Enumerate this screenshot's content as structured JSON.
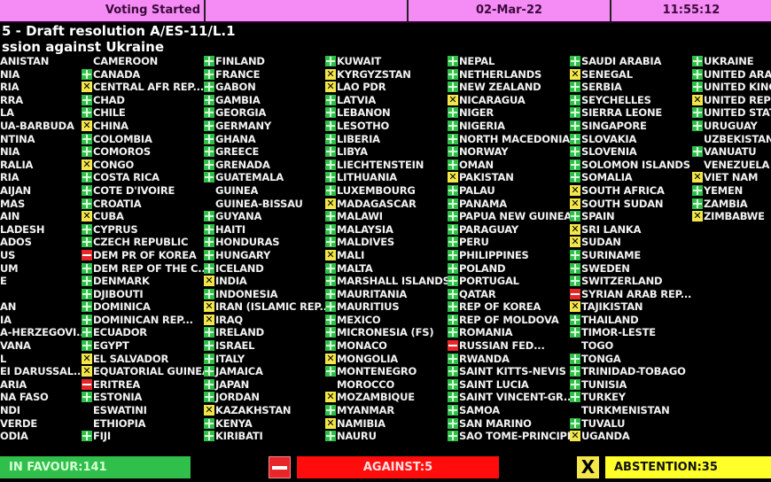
{
  "header": {
    "status": "Voting Started",
    "blank": "",
    "date": "02-Mar-22",
    "time": "11:55:12"
  },
  "title": {
    "line1": "5 - Draft resolution A/ES-11/L.1",
    "line2": "ssion against Ukraine"
  },
  "colors": {
    "favour": "#2fbf4a",
    "against": "#e8262a",
    "abstention": "#f2e64a",
    "header": "#f58cf5"
  },
  "vote_legend": {
    "Y": "plus-icon (in favour)",
    "N": "minus-icon (against)",
    "A": "x-icon (abstention)",
    "": "no vote"
  },
  "columns": [
    [
      {
        "n": "ANISTAN",
        "v": ""
      },
      {
        "n": "NIA",
        "v": ""
      },
      {
        "n": "RIA",
        "v": ""
      },
      {
        "n": "RRA",
        "v": ""
      },
      {
        "n": "LA",
        "v": ""
      },
      {
        "n": "UA-BARBUDA",
        "v": ""
      },
      {
        "n": "NTINA",
        "v": ""
      },
      {
        "n": "NIA",
        "v": ""
      },
      {
        "n": "RALIA",
        "v": ""
      },
      {
        "n": "RIA",
        "v": ""
      },
      {
        "n": "AIJAN",
        "v": ""
      },
      {
        "n": "MAS",
        "v": ""
      },
      {
        "n": "AIN",
        "v": ""
      },
      {
        "n": "LADESH",
        "v": ""
      },
      {
        "n": "ADOS",
        "v": ""
      },
      {
        "n": "US",
        "v": ""
      },
      {
        "n": "UM",
        "v": ""
      },
      {
        "n": "E",
        "v": ""
      },
      {
        "n": "",
        "v": ""
      },
      {
        "n": "AN",
        "v": ""
      },
      {
        "n": "IA",
        "v": ""
      },
      {
        "n": "A-HERZEGOVI...",
        "v": ""
      },
      {
        "n": "VANA",
        "v": ""
      },
      {
        "n": "L",
        "v": ""
      },
      {
        "n": "EI DARUSSAL...",
        "v": ""
      },
      {
        "n": "ARIA",
        "v": ""
      },
      {
        "n": "NA FASO",
        "v": ""
      },
      {
        "n": "NDI",
        "v": ""
      },
      {
        "n": "VERDE",
        "v": ""
      },
      {
        "n": "ODIA",
        "v": ""
      }
    ],
    [
      {
        "n": "CAMEROON",
        "v": ""
      },
      {
        "n": "CANADA",
        "v": "Y"
      },
      {
        "n": "CENTRAL AFR REP....",
        "v": "A"
      },
      {
        "n": "CHAD",
        "v": "Y"
      },
      {
        "n": "CHILE",
        "v": "Y"
      },
      {
        "n": "CHINA",
        "v": "A"
      },
      {
        "n": "COLOMBIA",
        "v": "Y"
      },
      {
        "n": "COMOROS",
        "v": "Y"
      },
      {
        "n": "CONGO",
        "v": "A"
      },
      {
        "n": "COSTA RICA",
        "v": "Y"
      },
      {
        "n": "COTE D'IVOIRE",
        "v": "Y"
      },
      {
        "n": "CROATIA",
        "v": "Y"
      },
      {
        "n": "CUBA",
        "v": "A"
      },
      {
        "n": "CYPRUS",
        "v": "Y"
      },
      {
        "n": "CZECH REPUBLIC",
        "v": "Y"
      },
      {
        "n": "DEM PR OF KOREA",
        "v": "N"
      },
      {
        "n": "DEM REP OF THE C...",
        "v": "Y"
      },
      {
        "n": "DENMARK",
        "v": "Y"
      },
      {
        "n": "DJIBOUTI",
        "v": "Y"
      },
      {
        "n": "DOMINICA",
        "v": "Y"
      },
      {
        "n": "DOMINICAN REP...",
        "v": "Y"
      },
      {
        "n": "ECUADOR",
        "v": "Y"
      },
      {
        "n": "EGYPT",
        "v": "Y"
      },
      {
        "n": "EL SALVADOR",
        "v": "A"
      },
      {
        "n": "EQUATORIAL GUINEA",
        "v": "A"
      },
      {
        "n": "ERITREA",
        "v": "N"
      },
      {
        "n": "ESTONIA",
        "v": "Y"
      },
      {
        "n": "ESWATINI",
        "v": ""
      },
      {
        "n": "ETHIOPIA",
        "v": ""
      },
      {
        "n": "FIJI",
        "v": "Y"
      }
    ],
    [
      {
        "n": "FINLAND",
        "v": "Y"
      },
      {
        "n": "FRANCE",
        "v": "Y"
      },
      {
        "n": "GABON",
        "v": "Y"
      },
      {
        "n": "GAMBIA",
        "v": "Y"
      },
      {
        "n": "GEORGIA",
        "v": "Y"
      },
      {
        "n": "GERMANY",
        "v": "Y"
      },
      {
        "n": "GHANA",
        "v": "Y"
      },
      {
        "n": "GREECE",
        "v": "Y"
      },
      {
        "n": "GRENADA",
        "v": "Y"
      },
      {
        "n": "GUATEMALA",
        "v": "Y"
      },
      {
        "n": "GUINEA",
        "v": ""
      },
      {
        "n": "GUINEA-BISSAU",
        "v": ""
      },
      {
        "n": "GUYANA",
        "v": "Y"
      },
      {
        "n": "HAITI",
        "v": "Y"
      },
      {
        "n": "HONDURAS",
        "v": "Y"
      },
      {
        "n": "HUNGARY",
        "v": "Y"
      },
      {
        "n": "ICELAND",
        "v": "Y"
      },
      {
        "n": "INDIA",
        "v": "A"
      },
      {
        "n": "INDONESIA",
        "v": "Y"
      },
      {
        "n": "IRAN (ISLAMIC REP...",
        "v": "A"
      },
      {
        "n": "IRAQ",
        "v": "A"
      },
      {
        "n": "IRELAND",
        "v": "Y"
      },
      {
        "n": "ISRAEL",
        "v": "Y"
      },
      {
        "n": "ITALY",
        "v": "Y"
      },
      {
        "n": "JAMAICA",
        "v": "Y"
      },
      {
        "n": "JAPAN",
        "v": "Y"
      },
      {
        "n": "JORDAN",
        "v": "Y"
      },
      {
        "n": "KAZAKHSTAN",
        "v": "A"
      },
      {
        "n": "KENYA",
        "v": "Y"
      },
      {
        "n": "KIRIBATI",
        "v": "Y"
      }
    ],
    [
      {
        "n": "KUWAIT",
        "v": "Y"
      },
      {
        "n": "KYRGYZSTAN",
        "v": "A"
      },
      {
        "n": "LAO PDR",
        "v": "A"
      },
      {
        "n": "LATVIA",
        "v": "Y"
      },
      {
        "n": "LEBANON",
        "v": "Y"
      },
      {
        "n": "LESOTHO",
        "v": "Y"
      },
      {
        "n": "LIBERIA",
        "v": "Y"
      },
      {
        "n": "LIBYA",
        "v": "Y"
      },
      {
        "n": "LIECHTENSTEIN",
        "v": "Y"
      },
      {
        "n": "LITHUANIA",
        "v": "Y"
      },
      {
        "n": "LUXEMBOURG",
        "v": "Y"
      },
      {
        "n": "MADAGASCAR",
        "v": "A"
      },
      {
        "n": "MALAWI",
        "v": "Y"
      },
      {
        "n": "MALAYSIA",
        "v": "Y"
      },
      {
        "n": "MALDIVES",
        "v": "Y"
      },
      {
        "n": "MALI",
        "v": "A"
      },
      {
        "n": "MALTA",
        "v": "Y"
      },
      {
        "n": "MARSHALL ISLANDS",
        "v": "Y"
      },
      {
        "n": "MAURITANIA",
        "v": "Y"
      },
      {
        "n": "MAURITIUS",
        "v": "Y"
      },
      {
        "n": "MEXICO",
        "v": "Y"
      },
      {
        "n": "MICRONESIA (FS)",
        "v": "Y"
      },
      {
        "n": "MONACO",
        "v": "Y"
      },
      {
        "n": "MONGOLIA",
        "v": "A"
      },
      {
        "n": "MONTENEGRO",
        "v": "Y"
      },
      {
        "n": "MOROCCO",
        "v": ""
      },
      {
        "n": "MOZAMBIQUE",
        "v": "A"
      },
      {
        "n": "MYANMAR",
        "v": "Y"
      },
      {
        "n": "NAMIBIA",
        "v": "A"
      },
      {
        "n": "NAURU",
        "v": "Y"
      }
    ],
    [
      {
        "n": "NEPAL",
        "v": "Y"
      },
      {
        "n": "NETHERLANDS",
        "v": "Y"
      },
      {
        "n": "NEW ZEALAND",
        "v": "Y"
      },
      {
        "n": "NICARAGUA",
        "v": "A"
      },
      {
        "n": "NIGER",
        "v": "Y"
      },
      {
        "n": "NIGERIA",
        "v": "Y"
      },
      {
        "n": "NORTH MACEDONIA",
        "v": "Y"
      },
      {
        "n": "NORWAY",
        "v": "Y"
      },
      {
        "n": "OMAN",
        "v": "Y"
      },
      {
        "n": "PAKISTAN",
        "v": "A"
      },
      {
        "n": "PALAU",
        "v": "Y"
      },
      {
        "n": "PANAMA",
        "v": "Y"
      },
      {
        "n": "PAPUA NEW GUINEA",
        "v": "Y"
      },
      {
        "n": "PARAGUAY",
        "v": "Y"
      },
      {
        "n": "PERU",
        "v": "Y"
      },
      {
        "n": "PHILIPPINES",
        "v": "Y"
      },
      {
        "n": "POLAND",
        "v": "Y"
      },
      {
        "n": "PORTUGAL",
        "v": "Y"
      },
      {
        "n": "QATAR",
        "v": "Y"
      },
      {
        "n": "REP OF KOREA",
        "v": "Y"
      },
      {
        "n": "REP OF MOLDOVA",
        "v": "Y"
      },
      {
        "n": "ROMANIA",
        "v": "Y"
      },
      {
        "n": "RUSSIAN FED...",
        "v": "N"
      },
      {
        "n": "RWANDA",
        "v": "Y"
      },
      {
        "n": "SAINT KITTS-NEVIS",
        "v": "Y"
      },
      {
        "n": "SAINT LUCIA",
        "v": "Y"
      },
      {
        "n": "SAINT VINCENT-GR...",
        "v": "Y"
      },
      {
        "n": "SAMOA",
        "v": "Y"
      },
      {
        "n": "SAN MARINO",
        "v": "Y"
      },
      {
        "n": "SAO TOME-PRINCIPE",
        "v": "Y"
      }
    ],
    [
      {
        "n": "SAUDI ARABIA",
        "v": "Y"
      },
      {
        "n": "SENEGAL",
        "v": "A"
      },
      {
        "n": "SERBIA",
        "v": "Y"
      },
      {
        "n": "SEYCHELLES",
        "v": "Y"
      },
      {
        "n": "SIERRA LEONE",
        "v": "Y"
      },
      {
        "n": "SINGAPORE",
        "v": "Y"
      },
      {
        "n": "SLOVAKIA",
        "v": "Y"
      },
      {
        "n": "SLOVENIA",
        "v": "Y"
      },
      {
        "n": "SOLOMON ISLANDS",
        "v": "Y"
      },
      {
        "n": "SOMALIA",
        "v": "Y"
      },
      {
        "n": "SOUTH AFRICA",
        "v": "A"
      },
      {
        "n": "SOUTH SUDAN",
        "v": "A"
      },
      {
        "n": "SPAIN",
        "v": "Y"
      },
      {
        "n": "SRI LANKA",
        "v": "A"
      },
      {
        "n": "SUDAN",
        "v": "A"
      },
      {
        "n": "SURINAME",
        "v": "Y"
      },
      {
        "n": "SWEDEN",
        "v": "Y"
      },
      {
        "n": "SWITZERLAND",
        "v": "Y"
      },
      {
        "n": "SYRIAN ARAB REP...",
        "v": "N"
      },
      {
        "n": "TAJIKISTAN",
        "v": "A"
      },
      {
        "n": "THAILAND",
        "v": "Y"
      },
      {
        "n": "TIMOR-LESTE",
        "v": "Y"
      },
      {
        "n": "TOGO",
        "v": ""
      },
      {
        "n": "TONGA",
        "v": "Y"
      },
      {
        "n": "TRINIDAD-TOBAGO",
        "v": "Y"
      },
      {
        "n": "TUNISIA",
        "v": "Y"
      },
      {
        "n": "TURKEY",
        "v": "Y"
      },
      {
        "n": "TURKMENISTAN",
        "v": ""
      },
      {
        "n": "TUVALU",
        "v": "Y"
      },
      {
        "n": "UGANDA",
        "v": "A"
      }
    ],
    [
      {
        "n": "UKRAINE",
        "v": "Y"
      },
      {
        "n": "UNITED ARAB",
        "v": "Y"
      },
      {
        "n": "UNITED KING",
        "v": "Y"
      },
      {
        "n": "UNITED REP T",
        "v": "A"
      },
      {
        "n": "UNITED STATE",
        "v": "Y"
      },
      {
        "n": "URUGUAY",
        "v": "Y"
      },
      {
        "n": "UZBEKISTAN",
        "v": ""
      },
      {
        "n": "VANUATU",
        "v": "Y"
      },
      {
        "n": "VENEZUELA",
        "v": ""
      },
      {
        "n": "VIET NAM",
        "v": "A"
      },
      {
        "n": "YEMEN",
        "v": "Y"
      },
      {
        "n": "ZAMBIA",
        "v": "Y"
      },
      {
        "n": "ZIMBABWE",
        "v": "A"
      }
    ]
  ],
  "totals": {
    "favour": "IN FAVOUR:141",
    "against": "AGAINST:5",
    "abstention": "ABSTENTION:35",
    "x_glyph": "X"
  }
}
